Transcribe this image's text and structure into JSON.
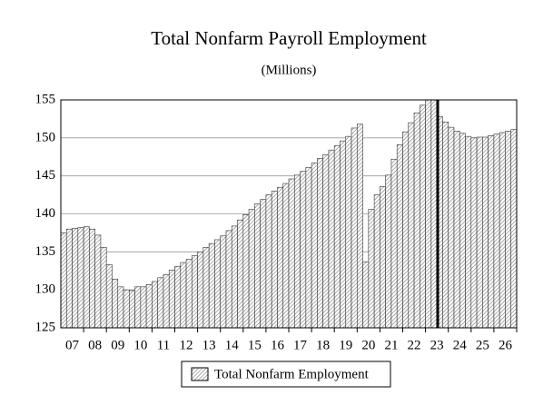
{
  "chart_data": {
    "type": "bar",
    "title": "Total Nonfarm Payroll Employment",
    "subtitle": "(Millions)",
    "categories": [
      null,
      "07",
      null,
      null,
      null,
      "08",
      null,
      null,
      null,
      "09",
      null,
      null,
      null,
      "10",
      null,
      null,
      null,
      "11",
      null,
      null,
      null,
      "12",
      null,
      null,
      null,
      "13",
      null,
      null,
      null,
      "14",
      null,
      null,
      null,
      "15",
      null,
      null,
      null,
      "16",
      null,
      null,
      null,
      "17",
      null,
      null,
      null,
      "18",
      null,
      null,
      null,
      "19",
      null,
      null,
      null,
      "20",
      null,
      null,
      null,
      "21",
      null,
      null,
      null,
      "22",
      null,
      null,
      null,
      "23",
      null,
      null,
      null,
      "24",
      null,
      null,
      null,
      "25",
      null,
      null,
      null,
      "26",
      null,
      null
    ],
    "series": [
      {
        "name": "Total Nonfarm Employment",
        "color": "#888888",
        "values": [
          137.5,
          138.0,
          138.1,
          138.2,
          138.3,
          138.0,
          137.2,
          135.6,
          133.3,
          131.4,
          130.4,
          130.0,
          129.9,
          130.4,
          130.4,
          130.7,
          131.1,
          131.6,
          132.0,
          132.6,
          133.1,
          133.6,
          134.0,
          134.5,
          135.0,
          135.6,
          136.1,
          136.6,
          137.1,
          137.8,
          138.4,
          139.2,
          139.9,
          140.6,
          141.3,
          141.9,
          142.5,
          143.0,
          143.5,
          144.0,
          144.6,
          145.1,
          145.6,
          146.1,
          146.7,
          147.3,
          147.8,
          148.4,
          149.0,
          149.6,
          150.2,
          151.3,
          151.8,
          133.7,
          140.6,
          142.5,
          143.6,
          145.1,
          147.2,
          149.1,
          150.8,
          152.0,
          153.3,
          154.3,
          155.2,
          155.5,
          152.8,
          152.1,
          151.4,
          150.9,
          150.6,
          150.2,
          150.0,
          150.1,
          150.1,
          150.3,
          150.5,
          150.7,
          150.9,
          151.1
        ]
      }
    ],
    "ylim": [
      125,
      155
    ],
    "yticks": [
      125,
      130,
      135,
      140,
      145,
      150,
      155
    ],
    "grid": true
  }
}
